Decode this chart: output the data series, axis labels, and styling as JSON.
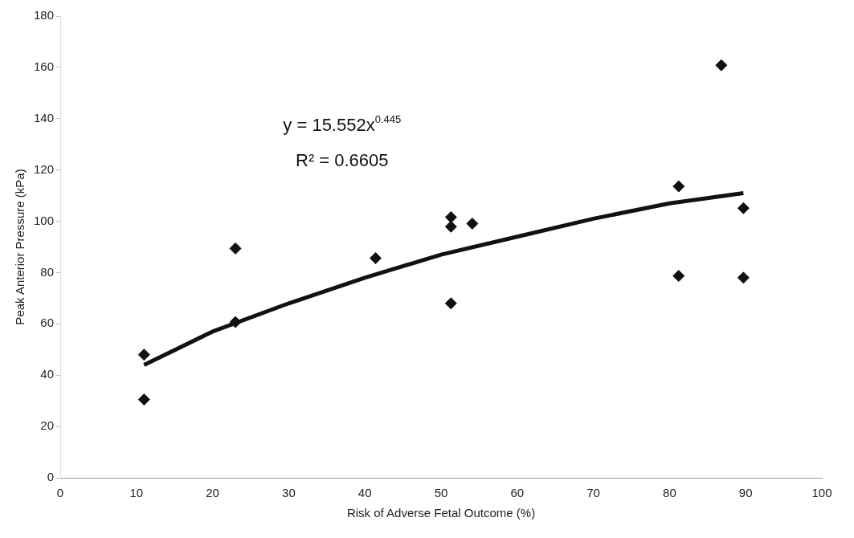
{
  "chart_data": {
    "type": "scatter",
    "xlabel": "Risk of Adverse Fetal Outcome (%)",
    "ylabel": "Peak Anterior Pressure (kPa)",
    "annotations": [
      "y = 15.552x$^{0.445}$",
      "R² = 0.6605"
    ],
    "xlim": [
      0,
      100
    ],
    "xticks": [
      0,
      10,
      20,
      30,
      40,
      50,
      60,
      70,
      80,
      90,
      100
    ],
    "ylim": [
      0,
      180
    ],
    "yticks": [
      0,
      20,
      40,
      60,
      80,
      100,
      120,
      140,
      160,
      180
    ],
    "grid": false,
    "legend": false,
    "marker": "diamond",
    "series": [
      {
        "color": "#111111",
        "x": [
          11,
          11,
          23,
          23,
          41.4,
          51.3,
          51.3,
          51.3,
          54.1,
          81.2,
          81.2,
          86.8,
          89.7,
          89.7
        ],
        "values": [
          48,
          30.5,
          89.4,
          60.7,
          85.6,
          101.6,
          97.9,
          68,
          99.1,
          113.6,
          78.7,
          160.8,
          105.1,
          78
        ]
      },
      {
        "type": "line",
        "color": "#111111",
        "marker": "none",
        "x": [
          11,
          20,
          30,
          40,
          50,
          60,
          70,
          80,
          89.7
        ],
        "values": [
          44,
          57,
          68,
          78,
          87,
          94,
          101,
          107,
          111
        ]
      }
    ]
  }
}
